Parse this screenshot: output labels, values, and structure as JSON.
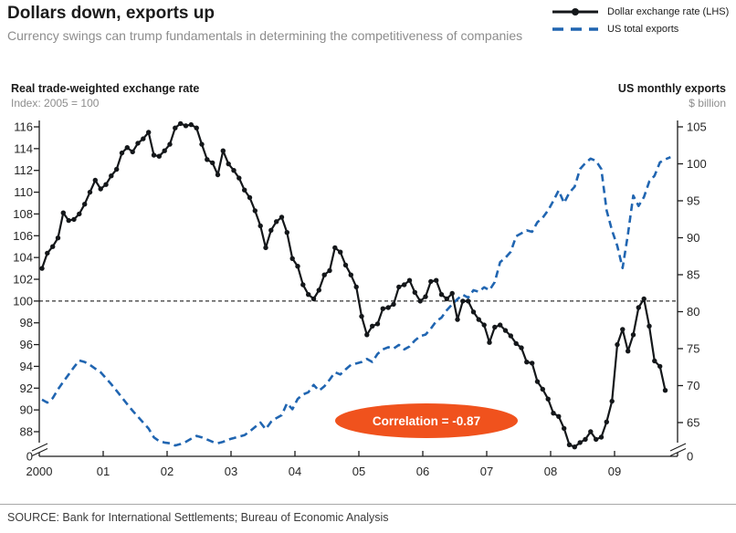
{
  "title": "Dollars down, exports up",
  "subtitle": "Currency swings can trump fundamentals in determining the competitiveness of companies",
  "legend": {
    "items": [
      {
        "label": "Dollar exchange rate (LHS)",
        "series": "dollar"
      },
      {
        "label": "US total exports",
        "series": "exports"
      }
    ]
  },
  "left_axis": {
    "title": "Real trade-weighted exchange rate",
    "subtitle": "Index: 2005 = 100"
  },
  "right_axis": {
    "title": "US monthly exports",
    "subtitle": "$ billion"
  },
  "footer": {
    "source": "SOURCE: Bank for International Settlements; Bureau of Economic Analysis"
  },
  "colors": {
    "dollar": "#14171a",
    "exports": "#2065b1",
    "annotation": "#f0521d",
    "grey_text": "#8d8d8d",
    "tick_text": "#262626"
  },
  "chart_data": {
    "type": "line",
    "title": "Dollars down, exports up",
    "x_unit": "month",
    "x_start": "2000-01",
    "x_tick_labels": [
      "2000",
      "01",
      "02",
      "03",
      "04",
      "05",
      "06",
      "07",
      "08",
      "09"
    ],
    "left_axis": {
      "label": "Real trade-weighted exchange rate (Index: 2005 = 100)",
      "ticks": [
        116,
        114,
        112,
        110,
        108,
        106,
        104,
        102,
        100,
        98,
        96,
        94,
        92,
        90,
        88
      ],
      "zero_label": "0",
      "axis_break": true,
      "range": [
        88,
        116
      ]
    },
    "right_axis": {
      "label": "US monthly exports ($ billion)",
      "ticks": [
        105,
        100,
        95,
        90,
        85,
        80,
        75,
        70,
        65
      ],
      "zero_label": "0",
      "axis_break": true,
      "range": [
        65,
        105
      ]
    },
    "reference_line": {
      "axis": "left",
      "value": 100,
      "style": "dashed"
    },
    "annotation": {
      "label": "Correlation = -0.87",
      "shape": "ellipse"
    },
    "legend_position": "top-right",
    "grid": false,
    "series": [
      {
        "name": "Dollar exchange rate (LHS)",
        "axis": "left",
        "style": "solid-with-markers",
        "color": "#14171a",
        "values": [
          103.0,
          104.4,
          105.0,
          105.8,
          108.1,
          107.4,
          107.5,
          108.0,
          108.9,
          110.0,
          111.1,
          110.3,
          110.7,
          111.5,
          112.1,
          113.6,
          114.1,
          113.7,
          114.5,
          114.9,
          115.5,
          113.4,
          113.3,
          113.8,
          114.4,
          115.9,
          116.3,
          116.1,
          116.2,
          115.9,
          114.4,
          113.0,
          112.7,
          111.6,
          113.8,
          112.6,
          112.0,
          111.3,
          110.2,
          109.5,
          108.3,
          106.9,
          104.9,
          106.5,
          107.3,
          107.7,
          106.3,
          103.9,
          103.2,
          101.5,
          100.6,
          100.2,
          101.0,
          102.4,
          102.8,
          104.9,
          104.5,
          103.3,
          102.4,
          101.3,
          98.6,
          96.9,
          97.7,
          97.9,
          99.3,
          99.4,
          99.7,
          101.3,
          101.5,
          101.9,
          100.8,
          100.0,
          100.4,
          101.8,
          101.9,
          100.6,
          100.2,
          100.7,
          98.3,
          100.0,
          100.0,
          99.0,
          98.3,
          97.8,
          96.2,
          97.6,
          97.8,
          97.3,
          96.8,
          96.1,
          95.7,
          94.4,
          94.3,
          92.6,
          91.9,
          91.0,
          89.7,
          89.4,
          88.3,
          86.8,
          86.6,
          87.0,
          87.3,
          88.0,
          87.3,
          87.5,
          88.9,
          90.8,
          96.0,
          97.4,
          95.4,
          96.9,
          99.4,
          100.2,
          97.7,
          94.5,
          94.0,
          91.8
        ]
      },
      {
        "name": "US total exports",
        "axis": "right",
        "style": "dashed",
        "color": "#2065b1",
        "values": [
          68.1,
          67.7,
          68.3,
          69.5,
          70.5,
          71.5,
          72.5,
          73.4,
          73.2,
          72.8,
          72.3,
          71.8,
          71.0,
          70.2,
          69.3,
          68.4,
          67.5,
          66.6,
          65.8,
          65.0,
          64.2,
          63.0,
          62.5,
          62.3,
          62.2,
          61.9,
          62.1,
          62.4,
          62.8,
          63.2,
          63.0,
          62.7,
          62.4,
          62.2,
          62.4,
          62.7,
          62.9,
          63.1,
          63.3,
          63.8,
          64.4,
          65.0,
          64.1,
          65.1,
          65.6,
          66.0,
          67.6,
          66.8,
          68.2,
          68.8,
          69.1,
          70.1,
          69.3,
          69.9,
          70.8,
          71.8,
          71.5,
          72.2,
          72.8,
          73.0,
          73.2,
          73.6,
          73.2,
          74.3,
          74.9,
          75.2,
          75.0,
          75.5,
          74.9,
          75.3,
          76.1,
          76.7,
          76.9,
          77.7,
          78.7,
          79.2,
          80.2,
          81.0,
          81.7,
          82.3,
          81.9,
          82.9,
          82.7,
          83.3,
          82.9,
          84.0,
          86.7,
          87.3,
          88.1,
          90.2,
          90.6,
          91.0,
          90.8,
          92.1,
          92.7,
          93.7,
          95.0,
          96.4,
          94.7,
          96.1,
          96.9,
          99.3,
          100.1,
          100.7,
          100.4,
          99.3,
          93.7,
          91.0,
          88.9,
          85.9,
          90.5,
          95.7,
          94.3,
          95.5,
          97.6,
          98.4,
          100.2,
          100.6,
          100.9
        ]
      }
    ]
  }
}
